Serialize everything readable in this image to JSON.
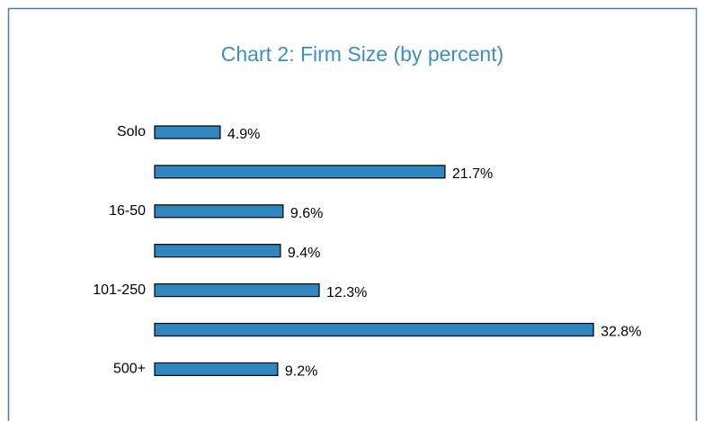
{
  "chart_data": {
    "type": "bar",
    "orientation": "horizontal",
    "title": "Chart 2:  Firm Size (by percent)",
    "categories": [
      "Solo",
      null,
      "16-50",
      null,
      "101-250",
      null,
      "500+"
    ],
    "values": [
      4.9,
      21.7,
      9.6,
      9.4,
      12.3,
      32.8,
      9.2
    ],
    "value_labels": [
      "4.9%",
      "21.7%",
      "9.6%",
      "9.4%",
      "12.3%",
      "32.8%",
      "9.2%"
    ],
    "color": "#2e86c1"
  }
}
